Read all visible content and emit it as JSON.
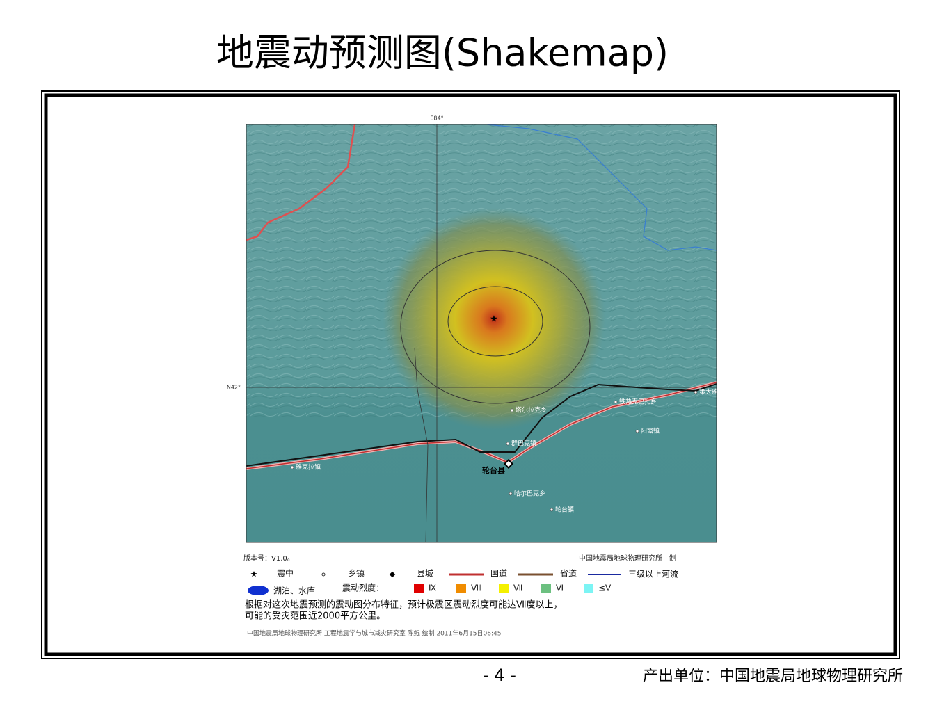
{
  "header": {
    "title": "地震动预测图(Shakemap)"
  },
  "map": {
    "lon_label": "E84°",
    "lat_label": "N42°",
    "places": [
      "塔尔拉克乡",
      "群巴克镇",
      "轮台县",
      "哈尔巴克乡",
      "轮台镇",
      "雅克拉镇",
      "铁热克巴扎乡",
      "阳霞镇",
      "策大雅"
    ]
  },
  "info": {
    "version": "版本号：V1.0。",
    "producer": "中国地震局地球物理研究所　制"
  },
  "legend": {
    "epicenter": "震中",
    "town": "乡镇",
    "county": "县城",
    "national_road": "国道",
    "provincial_road": "省道",
    "river": "三级以上河流",
    "lake": "湖泊、水库",
    "intensity_label": "震动烈度：",
    "intensities": [
      "Ⅸ",
      "Ⅷ",
      "Ⅶ",
      "Ⅵ",
      "≤Ⅴ"
    ]
  },
  "note": [
    "根据对这次地震预测的震动图分布特征，预计极震区震动烈度可能达Ⅶ度以上，",
    "可能的受灾范围近2000平方公里。"
  ],
  "credit": "中国地震局地球物理研究所 工程地震学与城市减灾研究室 陈鲲 绘制 2011年6月15日06:45",
  "footer": {
    "page": "- 4 -",
    "source": "产出单位：中国地震局地球物理研究所"
  }
}
